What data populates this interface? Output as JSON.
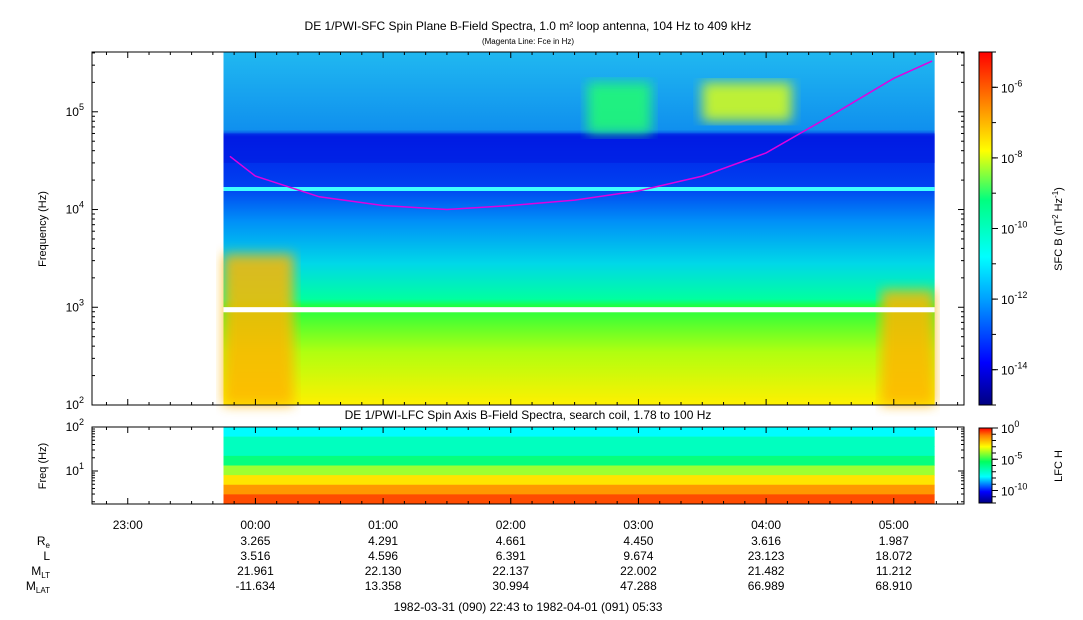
{
  "chart_data": [
    {
      "type": "heatmap",
      "title": "DE 1/PWI-SFC  Spin Plane B-Field Spectra, 1.0 m² loop antenna, 104 Hz to 409 kHz",
      "subtitle": "(Magenta Line: Fce in Hz)",
      "ylabel": "Frequency (Hz)",
      "yscale": "log",
      "ylim": [
        100,
        409000
      ],
      "y_ticks": [
        {
          "value": 100,
          "base": "10",
          "exp": "2"
        },
        {
          "value": 1000,
          "base": "10",
          "exp": "3"
        },
        {
          "value": 10000,
          "base": "10",
          "exp": "4"
        },
        {
          "value": 100000,
          "base": "10",
          "exp": "5"
        }
      ],
      "colorbar": {
        "label": "SFC B (nT",
        "label_sup1": "2",
        "label_mid": " Hz",
        "label_sup2": "-1",
        "label_end": ")",
        "scale": "log",
        "range": [
          1e-15,
          1e-05
        ],
        "ticks": [
          {
            "value": 1e-06,
            "base": "10",
            "exp": "-6"
          },
          {
            "value": 1e-08,
            "base": "10",
            "exp": "-8"
          },
          {
            "value": 1e-10,
            "base": "10",
            "exp": "-10"
          },
          {
            "value": 1e-12,
            "base": "10",
            "exp": "-12"
          },
          {
            "value": 1e-14,
            "base": "10",
            "exp": "-14"
          }
        ]
      },
      "data_start_hours": -0.25,
      "data_end_hours": 5.32,
      "fce_curve_hz": [
        {
          "t": -0.2,
          "f": 35000
        },
        {
          "t": 0.0,
          "f": 22000
        },
        {
          "t": 0.5,
          "f": 13500
        },
        {
          "t": 1.0,
          "f": 11000
        },
        {
          "t": 1.5,
          "f": 10000
        },
        {
          "t": 2.0,
          "f": 11000
        },
        {
          "t": 2.5,
          "f": 12500
        },
        {
          "t": 3.0,
          "f": 15500
        },
        {
          "t": 3.5,
          "f": 22000
        },
        {
          "t": 4.0,
          "f": 38000
        },
        {
          "t": 4.5,
          "f": 90000
        },
        {
          "t": 5.0,
          "f": 220000
        },
        {
          "t": 5.3,
          "f": 330000
        }
      ],
      "features": [
        {
          "name": "low-frequency emission",
          "t_range": [
            -0.25,
            0.3
          ],
          "f_range": [
            100,
            3500
          ],
          "level": 1e-07
        },
        {
          "name": "gap line",
          "t_range": [
            -0.25,
            5.32
          ],
          "f_range": [
            900,
            1000
          ]
        },
        {
          "name": "emission patch",
          "t_range": [
            2.6,
            3.1
          ],
          "f_range": [
            60000,
            200000
          ],
          "level": 1e-09
        },
        {
          "name": "emission patch",
          "t_range": [
            3.5,
            4.2
          ],
          "f_range": [
            80000,
            200000
          ],
          "level": 1e-08
        },
        {
          "name": "late emission",
          "t_range": [
            4.9,
            5.32
          ],
          "f_range": [
            100,
            1500
          ],
          "level": 1e-07
        }
      ]
    },
    {
      "type": "heatmap",
      "title": "DE 1/PWI-LFC  Spin Axis B-Field Spectra, search coil, 1.78 to 100 Hz",
      "ylabel": "Freq (Hz)",
      "yscale": "log",
      "ylim": [
        1.78,
        100
      ],
      "y_ticks": [
        {
          "value": 10,
          "base": "10",
          "exp": "1"
        },
        {
          "value": 100,
          "base": "10",
          "exp": "2"
        }
      ],
      "colorbar": {
        "label": "LFC H",
        "scale": "log",
        "range": [
          1e-12,
          1
        ],
        "ticks": [
          {
            "value": 1,
            "base": "10",
            "exp": "0"
          },
          {
            "value": 1e-05,
            "base": "10",
            "exp": "-5"
          },
          {
            "value": 1e-10,
            "base": "10",
            "exp": "-10"
          }
        ]
      },
      "band_levels": [
        0.1,
        0.01,
        0.001,
        0.0001,
        1e-05,
        1e-06,
        1e-06,
        1e-07
      ]
    }
  ],
  "time_axis": {
    "labels": [
      {
        "h": -1,
        "label": "23:00"
      },
      {
        "h": 0,
        "label": "00:00"
      },
      {
        "h": 1,
        "label": "01:00"
      },
      {
        "h": 2,
        "label": "02:00"
      },
      {
        "h": 3,
        "label": "03:00"
      },
      {
        "h": 4,
        "label": "04:00"
      },
      {
        "h": 5,
        "label": "05:00"
      }
    ],
    "range_hours": [
      -1.28,
      5.55
    ]
  },
  "ephemeris": {
    "rows": [
      {
        "key": "R",
        "sub": "e",
        "values": [
          "3.265",
          "4.291",
          "4.661",
          "4.450",
          "3.616",
          "1.987"
        ]
      },
      {
        "key": "L",
        "sub": "",
        "values": [
          "3.516",
          "4.596",
          "6.391",
          "9.674",
          "23.123",
          "18.072"
        ]
      },
      {
        "key": "M",
        "sub": "LT",
        "values": [
          "21.961",
          "22.130",
          "22.137",
          "22.002",
          "21.482",
          "11.212"
        ]
      },
      {
        "key": "M",
        "sub": "LAT",
        "values": [
          "-11.634",
          "13.358",
          "30.994",
          "47.288",
          "66.989",
          "68.910"
        ]
      }
    ],
    "hours": [
      0,
      1,
      2,
      3,
      4,
      5
    ]
  },
  "footer": "1982-03-31 (090) 22:43 to 1982-04-01 (091) 05:33"
}
